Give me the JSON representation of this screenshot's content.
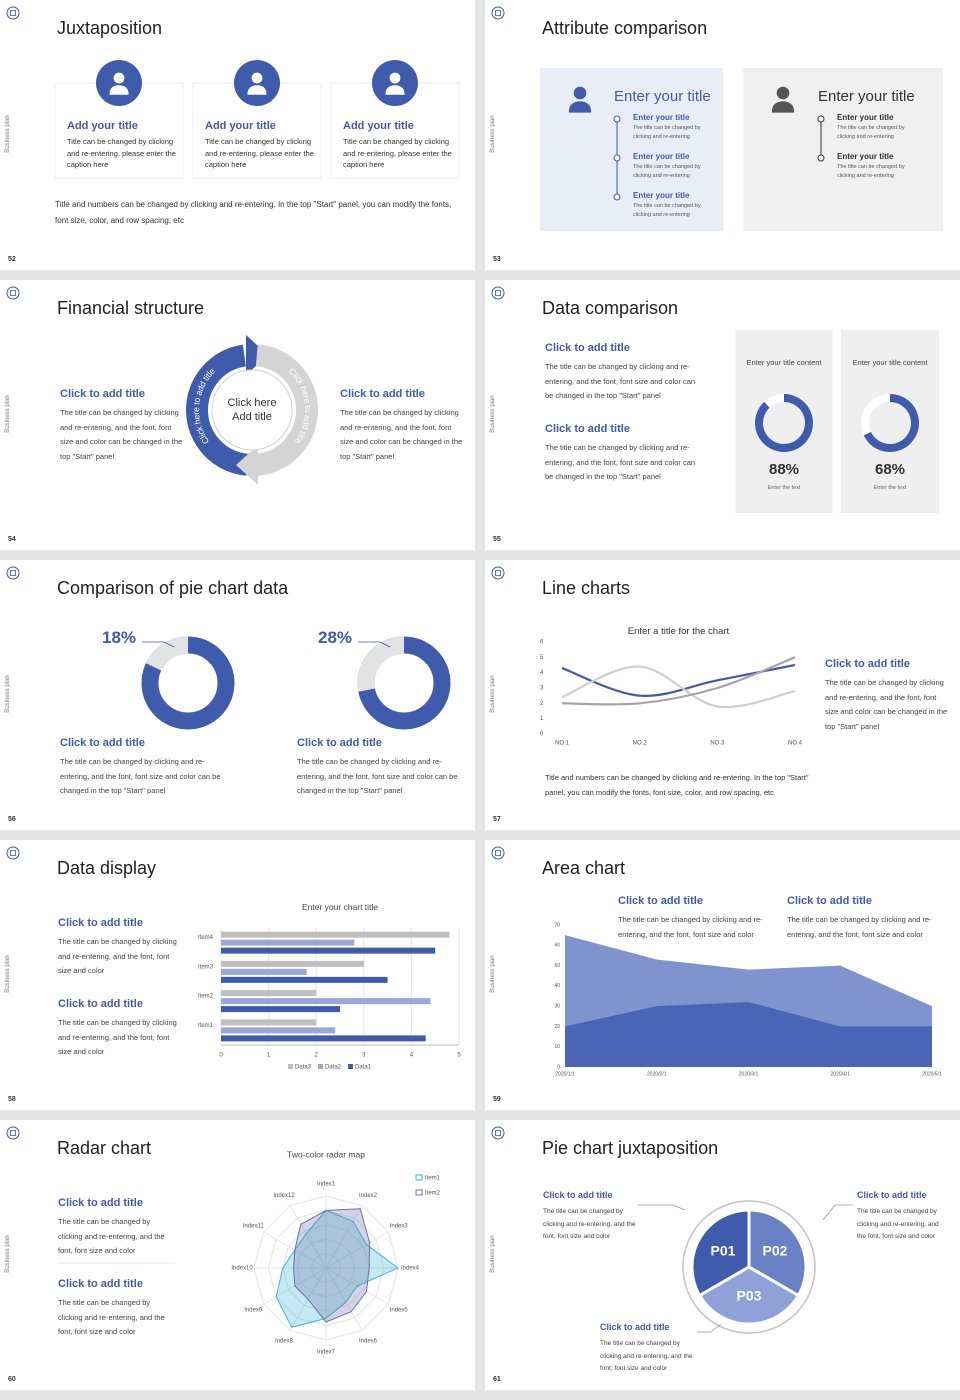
{
  "slides": [
    {
      "number": 52,
      "side_label": "Business plan",
      "title": "Juxtaposition",
      "cards": [
        {
          "title": "Add your title",
          "text": "Title can be changed by clicking and re-entering, please enter the caption here"
        },
        {
          "title": "Add your title",
          "text": "Title can be changed by clicking and re-entering, please enter the caption here"
        },
        {
          "title": "Add your title",
          "text": "Title can be changed by clicking and re-entering, please enter the caption here"
        }
      ],
      "footer": "Title and numbers can be changed by clicking and re-entering. In the top \"Start\" panel, you can modify the fonts, font size, color, and row spacing, etc"
    },
    {
      "number": 53,
      "side_label": "Business plan",
      "title": "Attribute comparison",
      "panels": [
        {
          "title": "Enter your title",
          "items": [
            {
              "title": "Enter your title",
              "text": "The title can be changed by clicking and re-entering"
            },
            {
              "title": "Enter your title",
              "text": "The title can be changed by clicking and re-entering"
            },
            {
              "title": "Enter your title",
              "text": "The title can be changed by clicking and re-entering"
            }
          ]
        },
        {
          "title": "Enter your title",
          "items": [
            {
              "title": "Enter your title",
              "text": "The title can be changed by clicking and re-entering"
            },
            {
              "title": "Enter your title",
              "text": "The title can be changed by clicking and re-entering"
            }
          ]
        }
      ]
    },
    {
      "number": 54,
      "side_label": "Business plan",
      "title": "Financial structure",
      "blocks": [
        {
          "title": "Click to add title",
          "text": "The title can be changed by clicking and re-entering, and the font, font size and color can be changed in the top \"Start\" panel"
        },
        {
          "title": "Click to add title",
          "text": "The title can be changed by clicking and re-entering, and the font, font size and color can be changed in the top \"Start\" panel"
        }
      ],
      "center": [
        "Click here",
        "Add title"
      ],
      "arcs": [
        "Click here to add title",
        "Click here to add title"
      ]
    },
    {
      "number": 55,
      "side_label": "Business plan",
      "title": "Data comparison",
      "blocks": [
        {
          "title": "Click to add title",
          "text": "The title can be changed by clicking and re-entering, and the font, font size and color can be changed in the top \"Start\" panel"
        },
        {
          "title": "Click to add title",
          "text": "The title can be changed by clicking and re-entering, and the font, font size and color can be changed in the top \"Start\" panel"
        }
      ],
      "cards": [
        {
          "heading": "Enter your title content",
          "value": 88,
          "value_label": "88%",
          "caption": "Enter the text"
        },
        {
          "heading": "Enter your title content",
          "value": 68,
          "value_label": "68%",
          "caption": "Enter the text"
        }
      ]
    },
    {
      "number": 56,
      "side_label": "Business plan",
      "title": "Comparison of pie chart data",
      "pies": [
        {
          "value": 18,
          "value_label": "18%",
          "title": "Click to add title",
          "text": "The title can be changed by clicking and re-entering, and the font, font size and color can be changed in the top \"Start\" panel"
        },
        {
          "value": 28,
          "value_label": "28%",
          "title": "Click to add title",
          "text": "The title can be changed by clicking and re-entering, and the font, font size and color can be changed in the top \"Start\" panel"
        }
      ]
    },
    {
      "number": 57,
      "side_label": "Business plan",
      "title": "Line charts",
      "chart": {
        "type": "line",
        "title": "Enter a title for the chart",
        "categories": [
          "NO.1",
          "NO.2",
          "NO.3",
          "NO.4"
        ],
        "series": [
          {
            "color": "#3f5bab",
            "values": [
              4.3,
              2.5,
              3.5,
              4.5
            ]
          },
          {
            "color": "#cfcfcf",
            "values": [
              2.4,
              4.4,
              1.8,
              2.8
            ]
          },
          {
            "color": "#a6a6a6",
            "values": [
              2,
              2,
              3,
              5
            ]
          }
        ],
        "ylim": [
          0,
          6
        ],
        "yticks": [
          0,
          1,
          2,
          3,
          4,
          5,
          6
        ]
      },
      "block": {
        "title": "Click to add title",
        "text": "The title can be changed by clicking and re-entering, and the font, font size and color can be changed in the top \"Start\" panel"
      },
      "footer": "Title and numbers can be changed by clicking and re-entering. In the top \"Start\" panel, you can modify the fonts, font size, color, and row spacing, etc"
    },
    {
      "number": 58,
      "side_label": "Business plan",
      "title": "Data display",
      "blocks": [
        {
          "title": "Click to add title",
          "text": "The title can be changed by clicking and re-entering, and the font, font size and color"
        },
        {
          "title": "Click to add title",
          "text": "The title can be changed by clicking and re-entering, and the font, font size and color"
        }
      ],
      "chart": {
        "type": "bar",
        "orientation": "horizontal",
        "title": "Enter your chart title",
        "categories": [
          "Item1",
          "Item2",
          "Item3",
          "Item4"
        ],
        "series": [
          {
            "name": "Data1",
            "color": "#3f5bab",
            "values": [
              4.3,
              2.5,
              3.5,
              4.5
            ]
          },
          {
            "name": "Data2",
            "color": "#9aa8d8",
            "values": [
              2.4,
              4.4,
              1.8,
              2.8
            ]
          },
          {
            "name": "Data3",
            "color": "#bfbfbf",
            "values": [
              2,
              2,
              3,
              4.8
            ]
          }
        ],
        "xlim": [
          0,
          5
        ],
        "xticks": [
          0,
          1,
          2,
          3,
          4,
          5
        ],
        "grid": true
      }
    },
    {
      "number": 59,
      "side_label": "Business plan",
      "title": "Area chart",
      "blocks": [
        {
          "title": "Click to add title",
          "text": "The title can be changed by clicking and re-entering, and the font, font size and color"
        },
        {
          "title": "Click to add title",
          "text": "The title can be changed by clicking and re-entering, and the font, font size and color"
        }
      ],
      "chart": {
        "type": "area",
        "x": [
          "2020/1/1",
          "2020/2/1",
          "2020/3/1",
          "2020/4/1",
          "2020/5/1"
        ],
        "series": [
          {
            "color": "#7f93cf",
            "values": [
              65,
              53,
              48,
              50,
              30
            ]
          },
          {
            "color": "#4a65b5",
            "values": [
              20,
              30,
              32,
              20,
              20
            ]
          }
        ],
        "ylim": [
          0,
          70
        ],
        "yticks": [
          0,
          10,
          20,
          30,
          40,
          50,
          60,
          70
        ]
      }
    },
    {
      "number": 60,
      "side_label": "Business plan",
      "title": "Radar chart",
      "blocks": [
        {
          "title": "Click to add title",
          "text": "The title can be changed by clicking and re-entering, and the font, font size and color"
        },
        {
          "title": "Click to add title",
          "text": "The title can be changed by clicking and re-entering, and the font, font size and color"
        }
      ],
      "chart": {
        "type": "radar",
        "title": "Two-color radar map",
        "categories": [
          "Index1",
          "Index2",
          "Index3",
          "Index4",
          "Index5",
          "Index6",
          "Index7",
          "Index8",
          "Index9",
          "Index10",
          "Index11",
          "Index12"
        ],
        "series": [
          {
            "name": "Item1",
            "color": "#3ab7d6",
            "values": [
              8,
              7.5,
              6.5,
              10,
              5,
              5.5,
              7,
              9.5,
              8,
              6,
              5,
              5.5
            ]
          },
          {
            "name": "Item2",
            "color": "#6d70a8",
            "values": [
              8,
              9.5,
              7,
              6,
              6.5,
              7,
              7.5,
              5,
              5,
              4.5,
              5,
              7
            ]
          }
        ],
        "rlim": [
          0,
          10
        ]
      }
    },
    {
      "number": 61,
      "side_label": "Business plan",
      "title": "Pie chart juxtaposition",
      "segments": [
        "P01",
        "P02",
        "P03"
      ],
      "blocks": [
        {
          "title": "Click to add title",
          "text": "The title can be changed by clicking and re-entering, and the font, font size and color"
        },
        {
          "title": "Click to add title",
          "text": "The title can be changed by clicking and re-entering, and the font, font size and color"
        },
        {
          "title": "Click to add title",
          "text": "The title can be changed by clicking and re-entering, and the font, font size and color"
        }
      ]
    }
  ]
}
